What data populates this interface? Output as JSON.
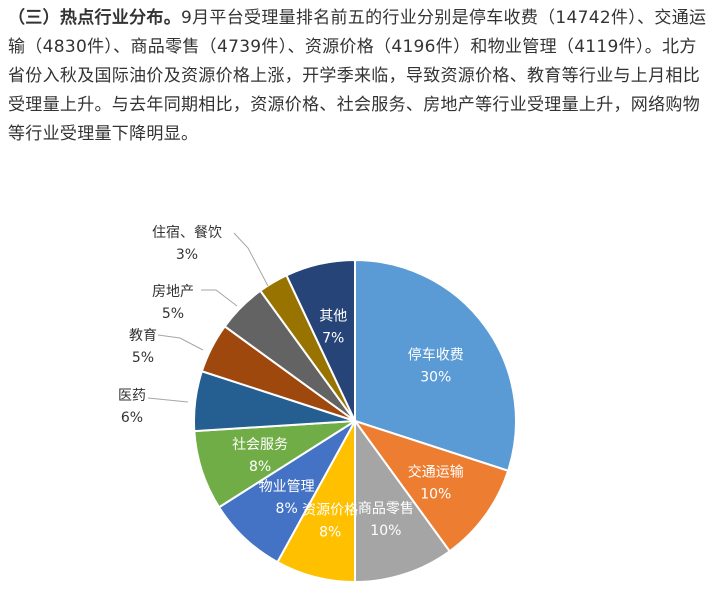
{
  "article": {
    "heading": "（三）热点行业分布。",
    "body": "9月平台受理量排名前五的行业分别是停车收费（14742件）、交通运输（4830件）、商品零售（4739件）、资源价格（4196件）和物业管理（4119件）。北方省份入秋及国际油价及资源价格上涨，开学季来临，导致资源价格、教育等行业与上月相比受理量上升。与去年同期相比，资源价格、社会服务、房地产等行业受理量上升，网络购物等行业受理量下降明显。"
  },
  "chart_data": {
    "type": "pie",
    "title": "",
    "start_angle_deg": 0,
    "direction": "clockwise",
    "slices": [
      {
        "name": "停车收费",
        "value": 30,
        "label": "30%",
        "color": "#5b9bd5",
        "label_inside": true,
        "text_color": "#ffffff"
      },
      {
        "name": "交通运输",
        "value": 10,
        "label": "10%",
        "color": "#ed7d31",
        "label_inside": true,
        "text_color": "#ffffff"
      },
      {
        "name": "商品零售",
        "value": 10,
        "label": "10%",
        "color": "#a5a5a5",
        "label_inside": true,
        "text_color": "#ffffff"
      },
      {
        "name": "资源价格",
        "value": 8,
        "label": "8%",
        "color": "#ffc000",
        "label_inside": true,
        "text_color": "#ffffff"
      },
      {
        "name": "物业管理",
        "value": 8,
        "label": "8%",
        "color": "#4472c4",
        "label_inside": true,
        "text_color": "#ffffff"
      },
      {
        "name": "社会服务",
        "value": 8,
        "label": "8%",
        "color": "#70ad47",
        "label_inside": true,
        "text_color": "#ffffff"
      },
      {
        "name": "医药",
        "value": 6,
        "label": "6%",
        "color": "#255e91",
        "label_inside": false,
        "text_color": "#333333"
      },
      {
        "name": "教育",
        "value": 5,
        "label": "5%",
        "color": "#9e480e",
        "label_inside": false,
        "text_color": "#333333"
      },
      {
        "name": "房地产",
        "value": 5,
        "label": "5%",
        "color": "#636363",
        "label_inside": false,
        "text_color": "#333333"
      },
      {
        "name": "住宿、餐饮",
        "value": 3,
        "label": "3%",
        "color": "#997300",
        "label_inside": false,
        "text_color": "#333333"
      },
      {
        "name": "其他",
        "value": 7,
        "label": "7%",
        "color": "#264478",
        "label_inside": true,
        "text_color": "#ffffff"
      }
    ]
  }
}
